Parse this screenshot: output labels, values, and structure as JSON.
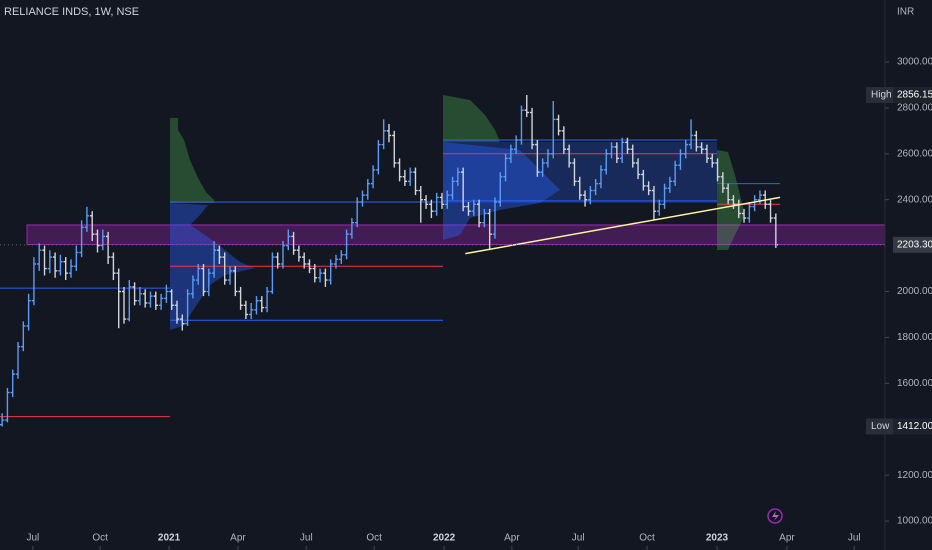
{
  "chart_data": {
    "type": "ohlc",
    "title": "RELIANCE INDS, 1W, NSE",
    "currency": "INR",
    "up_color": "#5b9cf6",
    "down_color": "#d1d4dc",
    "xlim": [
      -0.4,
      166.6
    ],
    "xticks": [
      {
        "value": 5.8,
        "label": "Jul"
      },
      {
        "value": 18.5,
        "label": "Oct"
      },
      {
        "value": 31.5,
        "label": "2021"
      },
      {
        "value": 44.5,
        "label": "Apr"
      },
      {
        "value": 57.4,
        "label": "Jul"
      },
      {
        "value": 70.2,
        "label": "Oct"
      },
      {
        "value": 83.4,
        "label": "2022"
      },
      {
        "value": 96.2,
        "label": "Apr"
      },
      {
        "value": 108.7,
        "label": "Jul"
      },
      {
        "value": 121.7,
        "label": "Oct"
      },
      {
        "value": 134.9,
        "label": "2023"
      },
      {
        "value": 148.1,
        "label": "Apr"
      },
      {
        "value": 160.8,
        "label": "Jul"
      }
    ],
    "ylim": [
      874,
      3270
    ],
    "yticks": [
      {
        "value": 3000,
        "label": "3000.00"
      },
      {
        "value": 2800,
        "label": "2800.00"
      },
      {
        "value": 2600,
        "label": "2600.00"
      },
      {
        "value": 2400,
        "label": "2400.00"
      },
      {
        "value": 2000,
        "label": "2000.00"
      },
      {
        "value": 1800,
        "label": "1800.00"
      },
      {
        "value": 1600,
        "label": "1600.00"
      },
      {
        "value": 1200,
        "label": "1200.00"
      },
      {
        "value": 1000,
        "label": "1000.00"
      }
    ],
    "open": [
      1420,
      1440,
      1560,
      1640,
      1760,
      1850,
      1960,
      2120,
      2180,
      2100,
      2150,
      2090,
      2130,
      2080,
      2110,
      2170,
      2280,
      2330,
      2250,
      2200,
      2240,
      2150,
      2080,
      2000,
      1880,
      2020,
      1960,
      1990,
      1950,
      1980,
      1940,
      1970,
      2000,
      1940,
      1880,
      1860,
      1990,
      2050,
      2100,
      2000,
      2080,
      2180,
      2150,
      2050,
      2090,
      2000,
      1940,
      1900,
      1920,
      1960,
      1930,
      2000,
      2150,
      2120,
      2200,
      2240,
      2180,
      2150,
      2120,
      2100,
      2060,
      2080,
      2050,
      2120,
      2140,
      2160,
      2250,
      2300,
      2390,
      2420,
      2470,
      2530,
      2640,
      2700,
      2680,
      2560,
      2500,
      2480,
      2520,
      2440,
      2400,
      2380,
      2350,
      2410,
      2380,
      2420,
      2480,
      2520,
      2370,
      2350,
      2380,
      2300,
      2340,
      2250,
      2390,
      2500,
      2580,
      2620,
      2660,
      2790,
      2780,
      2640,
      2520,
      2560,
      2600,
      2750,
      2700,
      2620,
      2560,
      2480,
      2420,
      2400,
      2440,
      2470,
      2530,
      2600,
      2630,
      2580,
      2650,
      2620,
      2560,
      2510,
      2460,
      2440,
      2350,
      2380,
      2450,
      2480,
      2550,
      2600,
      2640,
      2680,
      2630,
      2620,
      2580,
      2560,
      2500,
      2450,
      2400,
      2380,
      2340,
      2320,
      2370,
      2400,
      2420,
      2380,
      2320
    ],
    "high": [
      1470,
      1580,
      1660,
      1780,
      1870,
      1990,
      2150,
      2210,
      2200,
      2180,
      2170,
      2160,
      2150,
      2140,
      2200,
      2310,
      2369,
      2350,
      2270,
      2270,
      2260,
      2170,
      2100,
      2020,
      2050,
      2040,
      2020,
      2010,
      2000,
      2000,
      1990,
      2030,
      2010,
      1960,
      1900,
      2010,
      2070,
      2120,
      2120,
      2100,
      2220,
      2200,
      2170,
      2110,
      2110,
      2020,
      1960,
      1950,
      1980,
      1980,
      2020,
      2170,
      2170,
      2220,
      2270,
      2260,
      2200,
      2170,
      2140,
      2120,
      2100,
      2100,
      2140,
      2160,
      2180,
      2270,
      2320,
      2410,
      2440,
      2490,
      2550,
      2660,
      2750,
      2730,
      2700,
      2580,
      2530,
      2540,
      2540,
      2460,
      2420,
      2400,
      2430,
      2430,
      2440,
      2500,
      2540,
      2540,
      2390,
      2400,
      2400,
      2360,
      2360,
      2410,
      2520,
      2600,
      2640,
      2680,
      2810,
      2856.15,
      2800,
      2660,
      2580,
      2620,
      2830,
      2770,
      2720,
      2640,
      2580,
      2500,
      2440,
      2460,
      2490,
      2550,
      2620,
      2650,
      2650,
      2670,
      2670,
      2640,
      2580,
      2530,
      2480,
      2460,
      2400,
      2470,
      2500,
      2570,
      2620,
      2660,
      2750,
      2700,
      2650,
      2640,
      2600,
      2580,
      2520,
      2470,
      2420,
      2400,
      2360,
      2390,
      2420,
      2440,
      2440,
      2400,
      2340
    ],
    "low": [
      1412,
      1430,
      1540,
      1620,
      1740,
      1830,
      1940,
      2090,
      2070,
      2080,
      2060,
      2070,
      2050,
      2060,
      2090,
      2150,
      2260,
      2220,
      2170,
      2180,
      2120,
      2050,
      1840,
      1860,
      1870,
      1940,
      1940,
      1930,
      1930,
      1920,
      1920,
      1950,
      1920,
      1860,
      1830,
      1850,
      1970,
      2030,
      1980,
      1980,
      2060,
      2120,
      2030,
      2030,
      1980,
      1920,
      1880,
      1880,
      1900,
      1910,
      1910,
      1990,
      2100,
      2100,
      2180,
      2160,
      2130,
      2100,
      2080,
      2040,
      2040,
      2020,
      2030,
      2100,
      2120,
      2140,
      2230,
      2280,
      2370,
      2400,
      2450,
      2510,
      2620,
      2650,
      2540,
      2480,
      2460,
      2460,
      2420,
      2300,
      2360,
      2320,
      2330,
      2360,
      2360,
      2400,
      2460,
      2350,
      2330,
      2330,
      2280,
      2280,
      2180,
      2230,
      2370,
      2480,
      2560,
      2600,
      2640,
      2760,
      2620,
      2500,
      2500,
      2540,
      2580,
      2680,
      2600,
      2540,
      2460,
      2400,
      2370,
      2380,
      2420,
      2450,
      2510,
      2580,
      2560,
      2560,
      2600,
      2540,
      2490,
      2440,
      2420,
      2310,
      2330,
      2360,
      2430,
      2460,
      2530,
      2580,
      2620,
      2610,
      2600,
      2560,
      2540,
      2480,
      2430,
      2380,
      2360,
      2320,
      2300,
      2300,
      2350,
      2380,
      2360,
      2300,
      2190
    ],
    "close": [
      1440,
      1560,
      1640,
      1760,
      1850,
      1960,
      2120,
      2180,
      2100,
      2150,
      2090,
      2130,
      2080,
      2110,
      2170,
      2280,
      2330,
      2250,
      2200,
      2240,
      2150,
      2080,
      2000,
      1880,
      2020,
      1960,
      1990,
      1950,
      1980,
      1940,
      1970,
      2000,
      1940,
      1880,
      1860,
      1990,
      2050,
      2100,
      2000,
      2080,
      2180,
      2150,
      2050,
      2090,
      2000,
      1940,
      1900,
      1920,
      1960,
      1930,
      2000,
      2150,
      2120,
      2200,
      2240,
      2180,
      2150,
      2120,
      2100,
      2060,
      2080,
      2050,
      2120,
      2140,
      2160,
      2250,
      2300,
      2390,
      2420,
      2470,
      2530,
      2640,
      2700,
      2680,
      2560,
      2500,
      2480,
      2520,
      2440,
      2400,
      2380,
      2350,
      2410,
      2380,
      2420,
      2480,
      2520,
      2370,
      2350,
      2380,
      2300,
      2340,
      2250,
      2390,
      2500,
      2580,
      2620,
      2660,
      2790,
      2780,
      2640,
      2520,
      2560,
      2600,
      2750,
      2700,
      2620,
      2560,
      2480,
      2420,
      2400,
      2440,
      2470,
      2530,
      2600,
      2630,
      2580,
      2650,
      2620,
      2560,
      2510,
      2460,
      2440,
      2350,
      2380,
      2450,
      2480,
      2550,
      2600,
      2640,
      2680,
      2630,
      2620,
      2580,
      2560,
      2500,
      2450,
      2400,
      2380,
      2340,
      2320,
      2370,
      2400,
      2420,
      2380,
      2320,
      2203.3
    ],
    "high_marker": {
      "label": "High",
      "value": 2856.15
    },
    "low_marker": {
      "label": "Low",
      "value": 1412,
      "value_label": "1412.00"
    },
    "last_price": {
      "value": 2203.3,
      "value_label": "2203.30"
    },
    "levels": [
      {
        "price": 2015,
        "from": -0.4,
        "to": 31.7,
        "color": "#2962ff"
      },
      {
        "price": 1455,
        "from": -0.4,
        "to": 31.7,
        "color": "#f23645"
      },
      {
        "price": 2390,
        "from": 31.7,
        "to": 83.2,
        "color": "#2962ff"
      },
      {
        "price": 2110,
        "from": 31.7,
        "to": 83.2,
        "color": "#f23645"
      },
      {
        "price": 1875,
        "from": 31.7,
        "to": 83.2,
        "color": "#2962ff"
      },
      {
        "price": 2660,
        "from": 83.2,
        "to": 134.9,
        "color": "#2962ff"
      },
      {
        "price": 2600,
        "from": 83.2,
        "to": 134.9,
        "color": "#f23645"
      },
      {
        "price": 2395,
        "from": 83.2,
        "to": 134.9,
        "color": "#2962ff"
      },
      {
        "price": 2470,
        "from": 134.9,
        "to": 146.8,
        "color": "#2962ff"
      },
      {
        "price": 2380,
        "from": 134.9,
        "to": 146.8,
        "color": "#f23645"
      }
    ],
    "zone": {
      "from": 4.7,
      "to": 166.6,
      "low": 2205,
      "high": 2290,
      "color": "#9c27b0"
    },
    "trendline": {
      "x": [
        87.4,
        146.8
      ],
      "y": [
        2165,
        2410
      ],
      "color": "#fff59d"
    }
  }
}
